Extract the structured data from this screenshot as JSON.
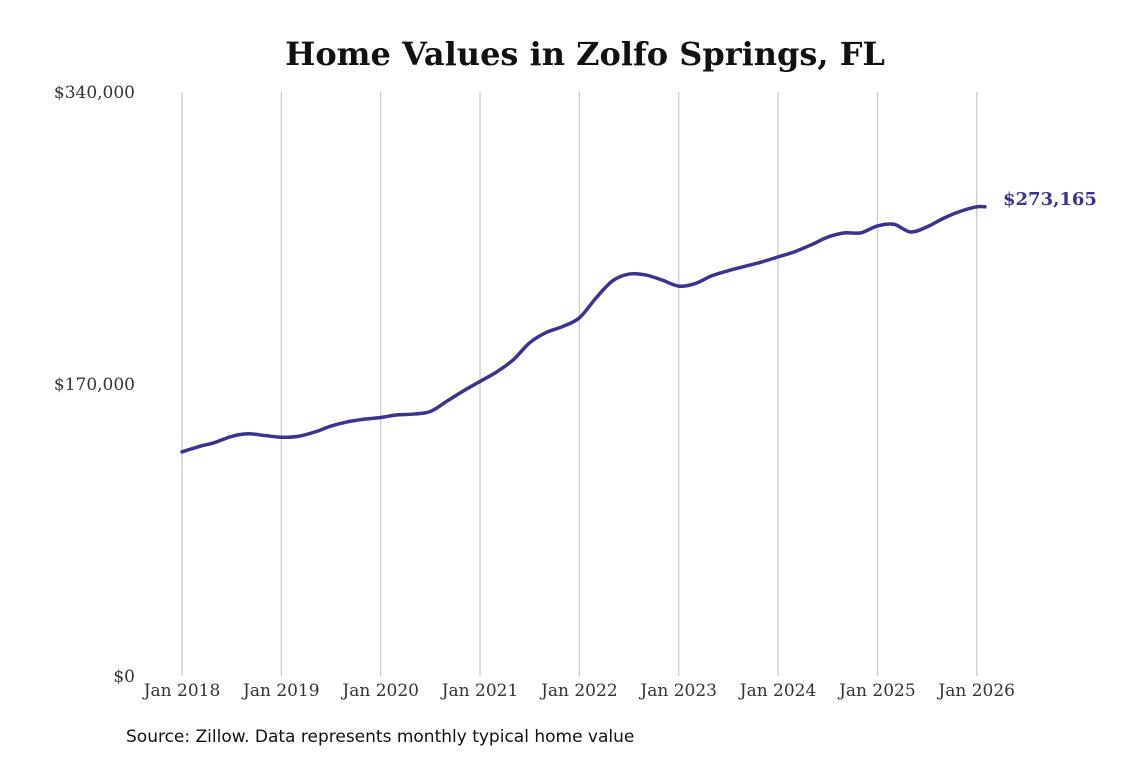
{
  "chart_data": {
    "type": "line",
    "title": "Home Values in Zolfo Springs, FL",
    "xlabel": "",
    "ylabel": "",
    "source_note": "Source: Zillow. Data represents monthly typical home value",
    "line_color": "#3b348f",
    "gridline_color": "#c8c8c8",
    "grid": "vertical",
    "ylim": [
      0,
      340000
    ],
    "y_ticks": [
      {
        "value": 0,
        "label": "$0"
      },
      {
        "value": 170000,
        "label": "$170,000"
      },
      {
        "value": 340000,
        "label": "$340,000"
      }
    ],
    "xlim": [
      "2018-01",
      "2026-02"
    ],
    "x_ticks": [
      {
        "date": "2018-01",
        "label": "Jan 2018"
      },
      {
        "date": "2019-01",
        "label": "Jan 2019"
      },
      {
        "date": "2020-01",
        "label": "Jan 2020"
      },
      {
        "date": "2021-01",
        "label": "Jan 2021"
      },
      {
        "date": "2022-01",
        "label": "Jan 2022"
      },
      {
        "date": "2023-01",
        "label": "Jan 2023"
      },
      {
        "date": "2024-01",
        "label": "Jan 2024"
      },
      {
        "date": "2025-01",
        "label": "Jan 2025"
      },
      {
        "date": "2026-01",
        "label": "Jan 2026"
      }
    ],
    "end_label": "$273,165",
    "series": [
      {
        "x": [
          "2018-01",
          "2018-03",
          "2018-05",
          "2018-07",
          "2018-09",
          "2018-11",
          "2019-01",
          "2019-03",
          "2019-05",
          "2019-07",
          "2019-09",
          "2019-11",
          "2020-01",
          "2020-03",
          "2020-05",
          "2020-07",
          "2020-09",
          "2020-11",
          "2021-01",
          "2021-03",
          "2021-05",
          "2021-07",
          "2021-09",
          "2021-11",
          "2022-01",
          "2022-03",
          "2022-05",
          "2022-07",
          "2022-09",
          "2022-11",
          "2023-01",
          "2023-03",
          "2023-05",
          "2023-07",
          "2023-09",
          "2023-11",
          "2024-01",
          "2024-03",
          "2024-05",
          "2024-07",
          "2024-09",
          "2024-11",
          "2025-01",
          "2025-03",
          "2025-05",
          "2025-07",
          "2025-09",
          "2025-11",
          "2026-01",
          "2026-02"
        ],
        "values": [
          130500,
          133500,
          136000,
          139500,
          141000,
          140000,
          139000,
          139500,
          142000,
          145500,
          148000,
          149500,
          150500,
          152000,
          152500,
          154000,
          160000,
          166000,
          171500,
          177000,
          184000,
          194000,
          200000,
          203500,
          208500,
          220000,
          230000,
          234000,
          233500,
          230500,
          227000,
          228500,
          233000,
          236000,
          238500,
          241000,
          244000,
          247000,
          251000,
          255500,
          258000,
          258000,
          262000,
          263000,
          258500,
          261500,
          266500,
          270500,
          273165,
          273165
        ]
      }
    ]
  }
}
